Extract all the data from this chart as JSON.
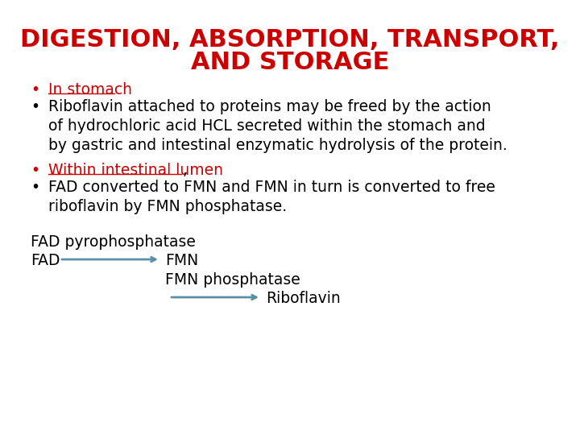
{
  "title_line1": "DIGESTION, ABSORPTION, TRANSPORT,",
  "title_line2": "AND STORAGE",
  "title_color": "#CC0000",
  "title_fontsize": 22,
  "body_fontsize": 13.5,
  "bullet_color": "#000000",
  "red_color": "#CC0000",
  "background_color": "#FFFFFF",
  "bullet1_text": "In stomach",
  "bullet1_color": "#CC0000",
  "bullet2_text": "Riboflavin attached to proteins may be freed by the action\nof hydrochloric acid HCL secreted within the stomach and\nby gastric and intestinal enzymatic hydrolysis of the protein.",
  "bullet3_text": "Within intestinal lumen",
  "bullet3_suffix": ",",
  "bullet3_color": "#CC0000",
  "bullet4_text": "FAD converted to FMN and FMN in turn is converted to free\nriboflavin by FMN phosphatase.",
  "fad_label1": "FAD pyrophosphatase",
  "fad_label2": "FAD",
  "fmn_label": "FMN",
  "fmn_phosphatase_label": "FMN phosphatase",
  "riboflavin_label": "Riboflavin",
  "arrow_color": "#5b8fa8",
  "diagram_fontsize": 13.5
}
